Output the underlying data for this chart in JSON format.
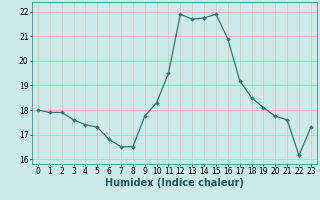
{
  "x": [
    0,
    1,
    2,
    3,
    4,
    5,
    6,
    7,
    8,
    9,
    10,
    11,
    12,
    13,
    14,
    15,
    16,
    17,
    18,
    19,
    20,
    21,
    22,
    23
  ],
  "y": [
    18.0,
    17.9,
    17.9,
    17.6,
    17.4,
    17.3,
    16.8,
    16.5,
    16.5,
    17.75,
    18.3,
    19.5,
    21.9,
    21.7,
    21.75,
    21.9,
    20.9,
    19.2,
    18.5,
    18.1,
    17.75,
    17.6,
    16.15,
    17.3
  ],
  "line_color": "#2d7a6e",
  "marker": "D",
  "marker_size": 1.8,
  "linewidth": 0.9,
  "xlabel": "Humidex (Indice chaleur)",
  "xlabel_fontsize": 7,
  "ylim": [
    15.8,
    22.4
  ],
  "xlim": [
    -0.5,
    23.5
  ],
  "yticks": [
    16,
    17,
    18,
    19,
    20,
    21,
    22
  ],
  "xticks": [
    0,
    1,
    2,
    3,
    4,
    5,
    6,
    7,
    8,
    9,
    10,
    11,
    12,
    13,
    14,
    15,
    16,
    17,
    18,
    19,
    20,
    21,
    22,
    23
  ],
  "grid_color": "#e8b8b8",
  "bg_color": "#cceaea",
  "tick_fontsize": 5.5
}
